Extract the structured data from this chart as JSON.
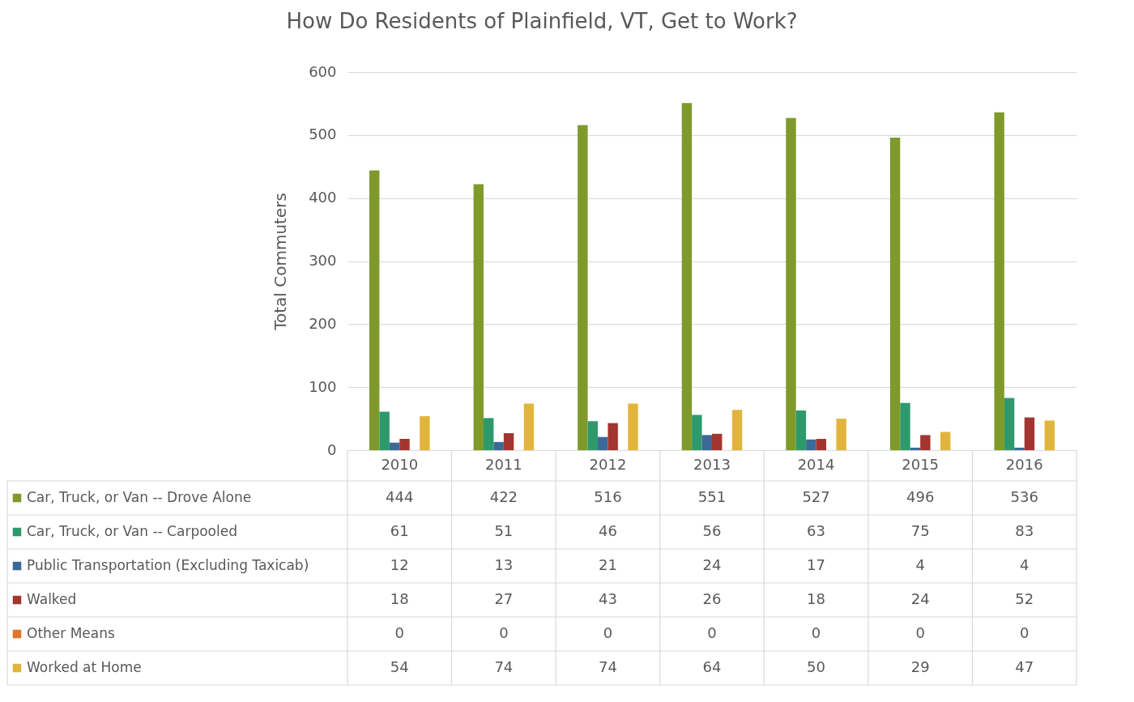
{
  "chart_data": {
    "type": "bar",
    "title": "How Do Residents of Plainfield, VT, Get to Work?",
    "ylabel": "Total Commuters",
    "categories": [
      "2010",
      "2011",
      "2012",
      "2013",
      "2014",
      "2015",
      "2016"
    ],
    "series": [
      {
        "name": "Car, Truck, or Van -- Drove Alone",
        "color": "#7f9a2b",
        "values": [
          444,
          422,
          516,
          551,
          527,
          496,
          536
        ]
      },
      {
        "name": "Car, Truck, or Van -- Carpooled",
        "color": "#2e9a6c",
        "values": [
          61,
          51,
          46,
          56,
          63,
          75,
          83
        ]
      },
      {
        "name": "Public Transportation (Excluding Taxicab)",
        "color": "#3b6a98",
        "values": [
          12,
          13,
          21,
          24,
          17,
          4,
          4
        ]
      },
      {
        "name": "Walked",
        "color": "#a33530",
        "values": [
          18,
          27,
          43,
          26,
          18,
          24,
          52
        ]
      },
      {
        "name": "Other Means",
        "color": "#e0762b",
        "values": [
          0,
          0,
          0,
          0,
          0,
          0,
          0
        ]
      },
      {
        "name": "Worked at Home",
        "color": "#e1b53d",
        "values": [
          54,
          74,
          74,
          64,
          50,
          29,
          47
        ]
      }
    ],
    "ylim": [
      0,
      600
    ],
    "yticks": [
      0,
      100,
      200,
      300,
      400,
      500,
      600
    ],
    "grid": "y",
    "legend": "bottom",
    "data_labels": true
  }
}
